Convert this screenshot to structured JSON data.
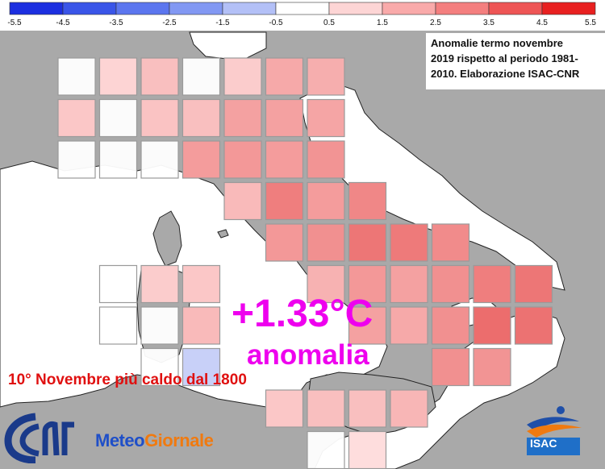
{
  "colorbar": {
    "ticks": [
      "-5.5",
      "-4.5",
      "-3.5",
      "-2.5",
      "-1.5",
      "-0.5",
      "0.5",
      "1.5",
      "2.5",
      "3.5",
      "4.5",
      "5.5"
    ],
    "colors": [
      "#1c2fe0",
      "#3a55e8",
      "#5c76ef",
      "#8298f3",
      "#b3c0f7",
      "#ffffff",
      "#fdd5d5",
      "#f9aaaa",
      "#f47f7f",
      "#ee5555",
      "#e82020"
    ]
  },
  "note": {
    "line1": "Anomalie termo novembre",
    "line2": "2019 rispetto al periodo 1981-",
    "line3": "2010. Elaborazione ISAC-CNR"
  },
  "anomaly_value": "+1.33°C",
  "anomaly_word": "anomalia",
  "headline": "10° Novembre più caldo dal 1800",
  "logos": {
    "cnr": "cnr-logo",
    "meteo_part1": "Meteo",
    "meteo_part2": "Giornale",
    "isac": "ISAC"
  },
  "colors": {
    "land": "#a9a9a9",
    "sea": "#ffffff",
    "grid": "#b8b8b8",
    "magenta": "#ee00ee",
    "headline": "#e01010"
  },
  "cell_anomaly_levels": [
    [
      0.3,
      0.8,
      1.3,
      0.4,
      1.0,
      1.8,
      1.7,
      null,
      null,
      null,
      null,
      null,
      null
    ],
    [
      1.1,
      0.4,
      1.2,
      1.3,
      2.0,
      2.0,
      1.9,
      null,
      null,
      null,
      null,
      null,
      null
    ],
    [
      0.2,
      0.2,
      0.3,
      2.1,
      2.2,
      2.1,
      2.3,
      null,
      null,
      null,
      null,
      null,
      null
    ],
    [
      null,
      null,
      null,
      null,
      1.4,
      2.8,
      2.1,
      2.6,
      null,
      null,
      null,
      null,
      null
    ],
    [
      null,
      null,
      null,
      null,
      null,
      2.2,
      2.4,
      3.0,
      2.9,
      2.5,
      null,
      null,
      null
    ],
    [
      null,
      0.2,
      1.0,
      1.1,
      null,
      null,
      1.6,
      2.2,
      2.0,
      2.4,
      2.8,
      3.0,
      null
    ],
    [
      null,
      0.2,
      0.3,
      1.4,
      null,
      null,
      null,
      2.0,
      1.8,
      2.4,
      3.2,
      3.1,
      null
    ],
    [
      null,
      null,
      0.3,
      -1.2,
      null,
      null,
      null,
      null,
      null,
      2.4,
      2.3,
      null,
      null
    ],
    [
      null,
      null,
      null,
      null,
      null,
      1.1,
      1.3,
      1.3,
      1.5,
      null,
      null,
      null,
      null
    ],
    [
      null,
      null,
      null,
      null,
      null,
      null,
      0.4,
      0.6,
      null,
      null,
      null,
      null,
      null
    ]
  ]
}
